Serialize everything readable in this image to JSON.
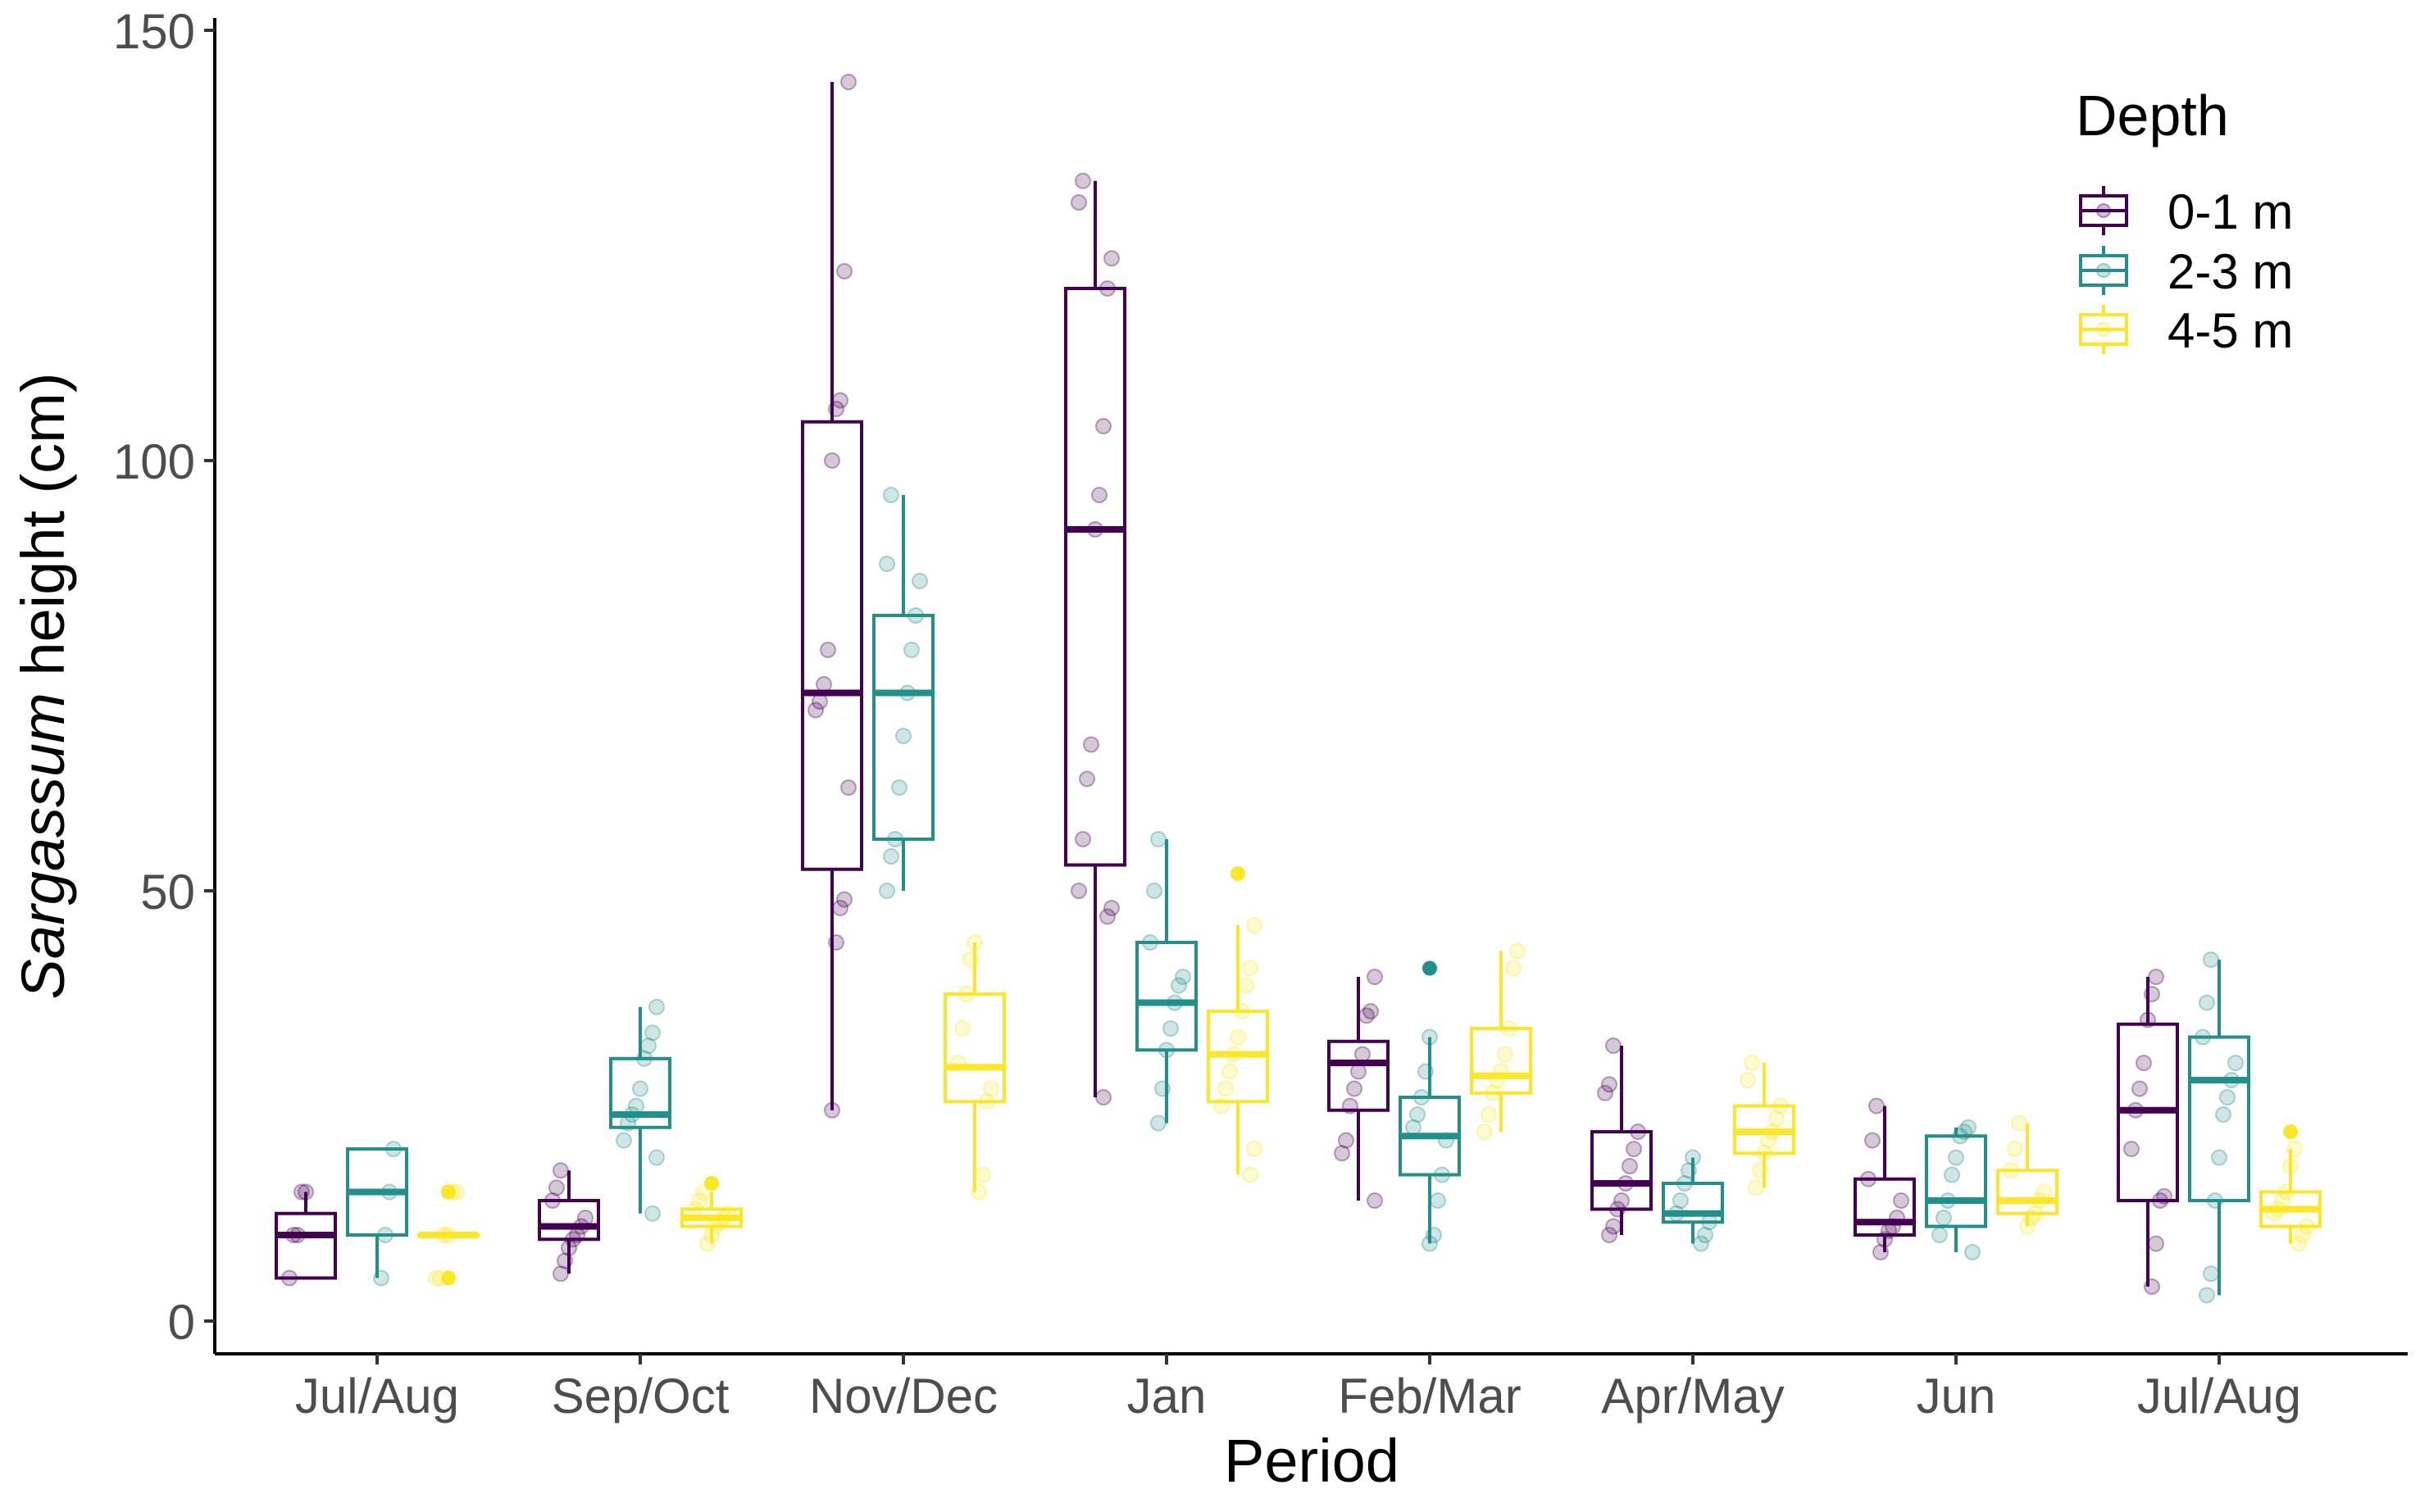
{
  "chart_data": {
    "type": "box",
    "xlabel": "Period",
    "ylabel_italic": "Sargassum",
    "ylabel_rest": " height (cm)",
    "ylim": [
      0,
      150
    ],
    "yticks": [
      0,
      50,
      100,
      150
    ],
    "categories": [
      "Jul/Aug",
      "Sep/Oct",
      "Nov/Dec",
      "Jan",
      "Feb/Mar",
      "Apr/May",
      "Jun",
      "Jul/Aug"
    ],
    "grid": false,
    "legend": {
      "title": "Depth",
      "position": "top-right"
    },
    "series": [
      {
        "name": "0-1 m",
        "color": "#440154",
        "boxes": [
          {
            "q1": 5,
            "median": 10,
            "q3": 12.5,
            "low": 5,
            "high": 15,
            "points": [
              5,
              10,
              10,
              15,
              15
            ],
            "outliers": []
          },
          {
            "q1": 9.5,
            "median": 11,
            "q3": 14,
            "low": 5.5,
            "high": 17.5,
            "points": [
              5.5,
              7,
              8.5,
              9.5,
              10,
              11,
              12,
              14,
              15.5,
              17.5
            ],
            "outliers": []
          },
          {
            "q1": 52.5,
            "median": 73,
            "q3": 104.5,
            "low": 24.5,
            "high": 144,
            "points": [
              24.5,
              44,
              48,
              49,
              62,
              71,
              72,
              74,
              78,
              100,
              106,
              107,
              122,
              144
            ],
            "outliers": []
          },
          {
            "q1": 53,
            "median": 92,
            "q3": 120,
            "low": 26,
            "high": 132.5,
            "points": [
              26,
              47,
              48,
              50,
              56,
              63,
              67,
              92,
              96,
              104,
              120,
              123.5,
              130,
              132.5
            ],
            "outliers": []
          },
          {
            "q1": 24.5,
            "median": 30,
            "q3": 32.5,
            "low": 14,
            "high": 40,
            "points": [
              14,
              19.5,
              21,
              25,
              27,
              29,
              31,
              35.5,
              36,
              40
            ],
            "outliers": []
          },
          {
            "q1": 13,
            "median": 16,
            "q3": 22,
            "low": 10,
            "high": 32,
            "points": [
              10,
              11,
              13,
              14,
              16,
              18,
              20,
              22,
              26.5,
              27.5,
              32
            ],
            "outliers": []
          },
          {
            "q1": 10,
            "median": 11.5,
            "q3": 16.5,
            "low": 8,
            "high": 25,
            "points": [
              8,
              9.5,
              10.5,
              11,
              12,
              14,
              16.5,
              21,
              25
            ],
            "outliers": []
          },
          {
            "q1": 14,
            "median": 24.5,
            "q3": 34.5,
            "low": 4,
            "high": 40,
            "points": [
              4,
              9,
              14,
              14.5,
              20,
              24.5,
              27,
              30,
              35,
              38,
              40
            ],
            "outliers": []
          }
        ]
      },
      {
        "name": "2-3 m",
        "color": "#21908C",
        "boxes": [
          {
            "q1": 10,
            "median": 15,
            "q3": 20,
            "low": 5,
            "high": 20,
            "points": [
              5,
              10,
              15,
              20
            ],
            "outliers": []
          },
          {
            "q1": 22.5,
            "median": 24,
            "q3": 30.5,
            "low": 12.5,
            "high": 36.5,
            "points": [
              12.5,
              19,
              21,
              23,
              24,
              25,
              27,
              30.5,
              32,
              33.5,
              36.5
            ],
            "outliers": []
          },
          {
            "q1": 56,
            "median": 73,
            "q3": 82,
            "low": 50,
            "high": 96,
            "points": [
              50,
              54,
              56,
              62,
              68,
              73,
              78,
              82,
              86,
              88,
              96
            ],
            "outliers": []
          },
          {
            "q1": 31.5,
            "median": 37,
            "q3": 44,
            "low": 23,
            "high": 56,
            "points": [
              23,
              27,
              31.5,
              34,
              37,
              39,
              40,
              44,
              50,
              56
            ],
            "outliers": []
          },
          {
            "q1": 17,
            "median": 21.5,
            "q3": 26,
            "low": 9,
            "high": 33,
            "points": [
              9,
              10,
              14,
              17,
              21,
              22.5,
              24,
              26,
              29,
              33
            ],
            "outliers": [
              41
            ]
          },
          {
            "q1": 11.5,
            "median": 12.5,
            "q3": 16,
            "low": 9,
            "high": 19,
            "points": [
              9,
              10,
              11.5,
              12.5,
              14,
              16,
              17.5,
              19
            ],
            "outliers": []
          },
          {
            "q1": 11,
            "median": 14,
            "q3": 21.5,
            "low": 8,
            "high": 22.5,
            "points": [
              8,
              10,
              12,
              14,
              17,
              19,
              21.5,
              22,
              22.5
            ],
            "outliers": []
          },
          {
            "q1": 14,
            "median": 28,
            "q3": 33,
            "low": 3,
            "high": 42,
            "points": [
              3,
              5.5,
              14,
              19,
              24,
              26,
              28,
              30,
              33,
              37,
              42
            ],
            "outliers": []
          }
        ]
      },
      {
        "name": "4-5 m",
        "color": "#FDE725",
        "boxes": [
          {
            "q1": 10,
            "median": 10,
            "q3": 10,
            "low": 10,
            "high": 10,
            "points": [
              5,
              5,
              10,
              10,
              15,
              15
            ],
            "outliers": [
              5,
              15
            ]
          },
          {
            "q1": 11,
            "median": 12,
            "q3": 13,
            "low": 9,
            "high": 15,
            "points": [
              9,
              10,
              11,
              11.5,
              12,
              12.5,
              13,
              14,
              15
            ],
            "outliers": [
              16
            ]
          },
          {
            "q1": 25.5,
            "median": 29.5,
            "q3": 38,
            "low": 15,
            "high": 44,
            "points": [
              15,
              17,
              25.5,
              27,
              30,
              34,
              38,
              42,
              44
            ],
            "outliers": []
          },
          {
            "q1": 25.5,
            "median": 31,
            "q3": 36,
            "low": 17,
            "high": 46,
            "points": [
              17,
              20,
              25,
              27,
              29,
              31,
              33,
              36,
              39,
              41,
              46
            ],
            "outliers": [
              52
            ]
          },
          {
            "q1": 26.5,
            "median": 28.5,
            "q3": 34,
            "low": 22,
            "high": 43,
            "points": [
              22,
              24,
              26.5,
              28,
              29,
              31,
              34,
              41,
              43
            ],
            "outliers": []
          },
          {
            "q1": 19.5,
            "median": 22,
            "q3": 25,
            "low": 15.5,
            "high": 30,
            "points": [
              15.5,
              17.5,
              19.5,
              21,
              22,
              23.5,
              25,
              28,
              30
            ],
            "outliers": []
          },
          {
            "q1": 12.5,
            "median": 14,
            "q3": 17.5,
            "low": 11,
            "high": 23,
            "points": [
              11,
              12,
              12.5,
              14,
              15,
              17.5,
              20,
              23
            ],
            "outliers": []
          },
          {
            "q1": 11,
            "median": 13,
            "q3": 15,
            "low": 9,
            "high": 20,
            "points": [
              9,
              10,
              11,
              12.5,
              13,
              14,
              15,
              18,
              20
            ],
            "outliers": [
              22
            ]
          }
        ]
      }
    ]
  }
}
